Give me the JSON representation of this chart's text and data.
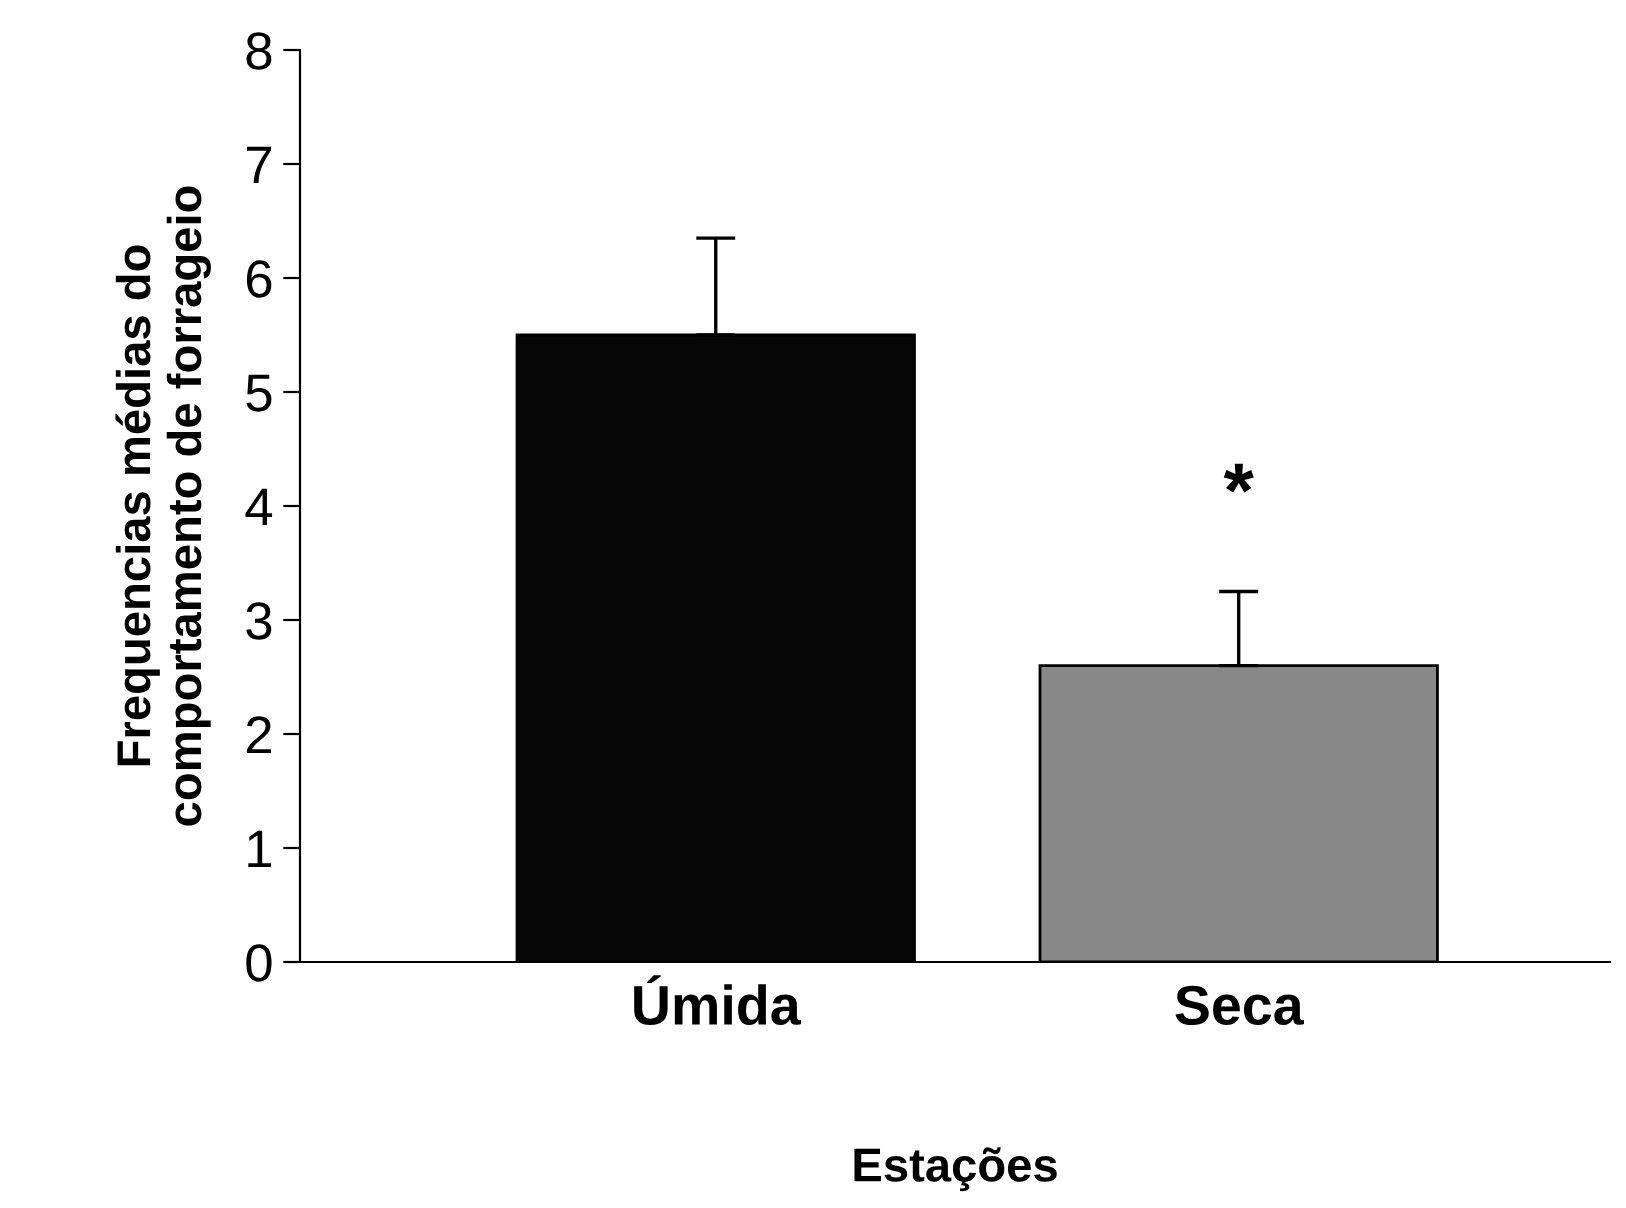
{
  "chart_data": {
    "type": "bar",
    "xlabel": "Estações",
    "ylabel": "Frequencias médias do\ncomportamento de forrageio",
    "categories": [
      "Úmida",
      "Seca"
    ],
    "values": [
      5.5,
      2.6
    ],
    "colors": [
      "#060606",
      "#888888"
    ],
    "errors": [
      0.85,
      0.65
    ],
    "ylim": [
      0,
      8
    ],
    "yticks": [
      0,
      1,
      2,
      3,
      4,
      5,
      6,
      7,
      8
    ],
    "grid": false,
    "legend": false,
    "annotations": [
      "*"
    ]
  }
}
